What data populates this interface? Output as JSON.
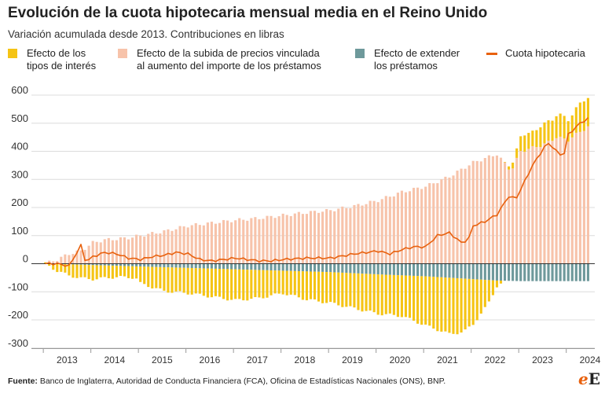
{
  "header": {
    "title": "Evolución de la cuota hipotecaria mensual media en el Reino Unido",
    "subtitle": "Variación acumulada desde 2013. Contribuciones en libras"
  },
  "legend": [
    {
      "line1": "Efecto de los",
      "line2": "tipos de interés",
      "color": "#f5c414",
      "kind": "bar"
    },
    {
      "line1": "Efecto de la subida de precios vinculada",
      "line2": "al aumento del importe de los préstamos",
      "color": "#f7c3aa",
      "kind": "bar"
    },
    {
      "line1": "Efecto de extender",
      "line2": "los préstamos",
      "color": "#6e999b",
      "kind": "bar"
    },
    {
      "line1": "Cuota hipotecaria",
      "line2": "",
      "color": "#e8610e",
      "kind": "line"
    }
  ],
  "footer": {
    "label": "Fuente:",
    "text": "Banco de Inglaterra, Autoridad de Conducta Financiera (FCA), Oficina de Estadísticas Nacionales (ONS), BNP."
  },
  "logo": {
    "e1": "e",
    "e2": "E"
  },
  "chart_data": {
    "type": "bar",
    "x_tick_labels": [
      "2013",
      "2014",
      "2015",
      "2016",
      "2017",
      "2018",
      "2019",
      "2020",
      "2021",
      "2022",
      "2023",
      "2024"
    ],
    "ylim": [
      -320,
      620
    ],
    "y_ticks": [
      600,
      500,
      400,
      300,
      200,
      100,
      0,
      -100,
      -200,
      -300
    ],
    "grid": true,
    "stacked": true,
    "frequency": "monthly",
    "period_start": "2013-01",
    "period_end": "2024-06",
    "colors": {
      "interest": "#f5c414",
      "price": "#f7c3aa",
      "extend": "#6e999b",
      "payment": "#e8610e"
    },
    "series_anchors": {
      "price": [
        [
          2013.0,
          0
        ],
        [
          2013.25,
          15
        ],
        [
          2013.5,
          35
        ],
        [
          2013.75,
          45
        ],
        [
          2014.0,
          75
        ],
        [
          2014.25,
          85
        ],
        [
          2014.5,
          88
        ],
        [
          2014.75,
          92
        ],
        [
          2015.0,
          100
        ],
        [
          2015.5,
          115
        ],
        [
          2016.0,
          135
        ],
        [
          2016.5,
          145
        ],
        [
          2017.0,
          155
        ],
        [
          2017.5,
          162
        ],
        [
          2018.0,
          172
        ],
        [
          2018.5,
          182
        ],
        [
          2019.0,
          190
        ],
        [
          2019.5,
          205
        ],
        [
          2020.0,
          225
        ],
        [
          2020.5,
          255
        ],
        [
          2021.0,
          275
        ],
        [
          2021.5,
          310
        ],
        [
          2022.0,
          360
        ],
        [
          2022.5,
          390
        ],
        [
          2022.8,
          330
        ],
        [
          2023.0,
          400
        ],
        [
          2023.5,
          425
        ],
        [
          2023.75,
          450
        ],
        [
          2024.0,
          440
        ],
        [
          2024.25,
          470
        ],
        [
          2024.5,
          495
        ]
      ],
      "interest": [
        [
          2013.0,
          0
        ],
        [
          2013.25,
          -25
        ],
        [
          2013.5,
          -40
        ],
        [
          2013.75,
          -48
        ],
        [
          2014.0,
          -50
        ],
        [
          2014.5,
          -40
        ],
        [
          2014.9,
          -40
        ],
        [
          2015.0,
          -60
        ],
        [
          2015.5,
          -85
        ],
        [
          2016.0,
          -90
        ],
        [
          2016.5,
          -100
        ],
        [
          2017.0,
          -110
        ],
        [
          2017.5,
          -100
        ],
        [
          2018.0,
          -80
        ],
        [
          2018.5,
          -100
        ],
        [
          2019.0,
          -110
        ],
        [
          2019.5,
          -125
        ],
        [
          2020.0,
          -140
        ],
        [
          2020.5,
          -145
        ],
        [
          2021.0,
          -175
        ],
        [
          2021.5,
          -200
        ],
        [
          2021.8,
          -190
        ],
        [
          2022.0,
          -160
        ],
        [
          2022.3,
          -90
        ],
        [
          2022.5,
          -20
        ],
        [
          2022.7,
          0
        ],
        [
          2022.8,
          20
        ],
        [
          2023.0,
          50
        ],
        [
          2023.5,
          70
        ],
        [
          2023.75,
          80
        ],
        [
          2024.0,
          75
        ],
        [
          2024.25,
          100
        ],
        [
          2024.5,
          105
        ]
      ],
      "extend": [
        [
          2013.0,
          0
        ],
        [
          2013.5,
          -2
        ],
        [
          2014.0,
          -5
        ],
        [
          2015.0,
          -10
        ],
        [
          2016.0,
          -15
        ],
        [
          2017.0,
          -20
        ],
        [
          2018.0,
          -25
        ],
        [
          2019.0,
          -30
        ],
        [
          2020.0,
          -38
        ],
        [
          2021.0,
          -45
        ],
        [
          2022.0,
          -55
        ],
        [
          2022.5,
          -60
        ],
        [
          2023.0,
          -62
        ],
        [
          2024.5,
          -62
        ]
      ],
      "payment": [
        [
          2013.0,
          0
        ],
        [
          2013.25,
          0
        ],
        [
          2013.5,
          -8
        ],
        [
          2013.75,
          65
        ],
        [
          2013.85,
          5
        ],
        [
          2014.0,
          25
        ],
        [
          2014.25,
          40
        ],
        [
          2014.5,
          35
        ],
        [
          2014.75,
          20
        ],
        [
          2015.0,
          15
        ],
        [
          2015.25,
          25
        ],
        [
          2015.5,
          30
        ],
        [
          2015.75,
          40
        ],
        [
          2016.0,
          35
        ],
        [
          2016.25,
          15
        ],
        [
          2016.5,
          10
        ],
        [
          2016.75,
          15
        ],
        [
          2017.0,
          20
        ],
        [
          2017.5,
          10
        ],
        [
          2017.75,
          10
        ],
        [
          2018.0,
          15
        ],
        [
          2018.5,
          20
        ],
        [
          2018.75,
          20
        ],
        [
          2019.0,
          20
        ],
        [
          2019.5,
          35
        ],
        [
          2019.75,
          40
        ],
        [
          2020.0,
          45
        ],
        [
          2020.25,
          35
        ],
        [
          2020.5,
          50
        ],
        [
          2020.75,
          60
        ],
        [
          2021.0,
          60
        ],
        [
          2021.25,
          100
        ],
        [
          2021.5,
          110
        ],
        [
          2021.75,
          75
        ],
        [
          2021.9,
          85
        ],
        [
          2022.0,
          135
        ],
        [
          2022.25,
          150
        ],
        [
          2022.5,
          175
        ],
        [
          2022.75,
          240
        ],
        [
          2022.9,
          230
        ],
        [
          2023.0,
          265
        ],
        [
          2023.25,
          350
        ],
        [
          2023.5,
          415
        ],
        [
          2023.6,
          430
        ],
        [
          2023.75,
          400
        ],
        [
          2023.9,
          380
        ],
        [
          2024.0,
          460
        ],
        [
          2024.25,
          500
        ],
        [
          2024.5,
          525
        ]
      ]
    }
  }
}
